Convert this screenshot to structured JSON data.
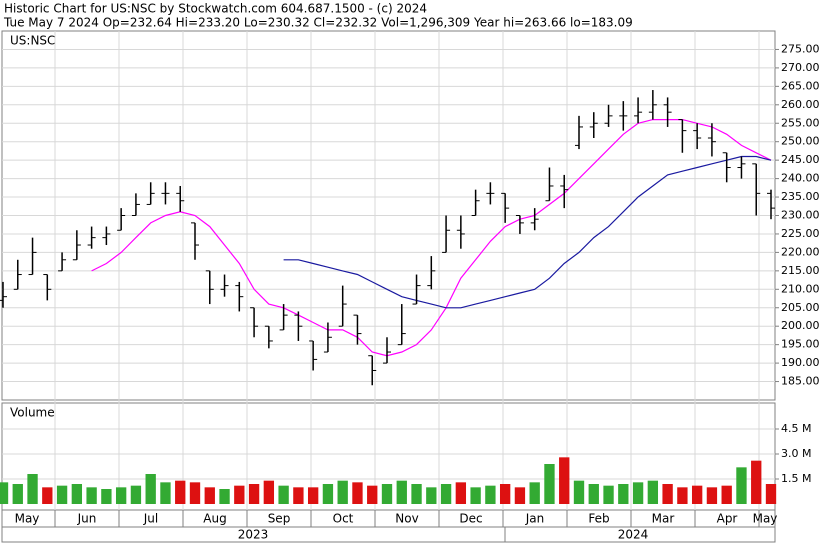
{
  "chart_data": {
    "type": "ohlc",
    "title": "Historic Chart for US:NSC by Stockwatch.com 604.687.1500 - (c) 2024",
    "subtitle": "Tue May  7 2024  Op=232.64  Hi=233.20  Lo=230.32  Cl=232.32  Vol=1,296,309  Year hi=263.66  lo=183.09",
    "symbol": "US:NSC",
    "volume_label": "Volume",
    "months": [
      "May",
      "Jun",
      "Jul",
      "Aug",
      "Sep",
      "Oct",
      "Nov",
      "Dec",
      "Jan",
      "Feb",
      "Mar",
      "Apr",
      "May"
    ],
    "years": [
      "2023",
      "2024"
    ],
    "ylim": [
      180,
      280
    ],
    "yticks": [
      {
        "value": 185,
        "label": "185.00"
      },
      {
        "value": 190,
        "label": "190.00"
      },
      {
        "value": 195,
        "label": "195.00"
      },
      {
        "value": 200,
        "label": "200.00"
      },
      {
        "value": 205,
        "label": "205.00"
      },
      {
        "value": 210,
        "label": "210.00"
      },
      {
        "value": 215,
        "label": "215.00"
      },
      {
        "value": 220,
        "label": "220.00"
      },
      {
        "value": 225,
        "label": "225.00"
      },
      {
        "value": 230,
        "label": "230.00"
      },
      {
        "value": 235,
        "label": "235.00"
      },
      {
        "value": 240,
        "label": "240.00"
      },
      {
        "value": 245,
        "label": "245.00"
      },
      {
        "value": 250,
        "label": "250.00"
      },
      {
        "value": 255,
        "label": "255.00"
      },
      {
        "value": 260,
        "label": "260.00"
      },
      {
        "value": 265,
        "label": "265.00"
      },
      {
        "value": 270,
        "label": "270.00"
      },
      {
        "value": 275,
        "label": "275.00"
      }
    ],
    "grid": true,
    "bar_color": "#000000",
    "opens": [
      207,
      210,
      214,
      214,
      215,
      218,
      222,
      224,
      226,
      230,
      233,
      236,
      236,
      228,
      215,
      210,
      211,
      205,
      200,
      199,
      203,
      196,
      193,
      200,
      203,
      192,
      190,
      195,
      206,
      211,
      220,
      226,
      230,
      236,
      236,
      230,
      228,
      234,
      238,
      249,
      254,
      255,
      257,
      257,
      258,
      260,
      256,
      253,
      251,
      247,
      243,
      244,
      236
    ],
    "highs": [
      212,
      218,
      224,
      214,
      220,
      226,
      227,
      227,
      232,
      236,
      239,
      239,
      238,
      228,
      215,
      214,
      212,
      205,
      200,
      206,
      204,
      196,
      201,
      211,
      203,
      192,
      197,
      206,
      214,
      219,
      230,
      230,
      237,
      239,
      236,
      230,
      232,
      243,
      241,
      257,
      258,
      260,
      261,
      262,
      264,
      262,
      256,
      255,
      255,
      247,
      246,
      244,
      237
    ],
    "lows": [
      205,
      210,
      214,
      207,
      215,
      218,
      221,
      222,
      226,
      230,
      233,
      233,
      231,
      218,
      206,
      208,
      204,
      197,
      194,
      199,
      196,
      188,
      193,
      200,
      195,
      184,
      190,
      195,
      206,
      210,
      220,
      221,
      230,
      233,
      228,
      225,
      226,
      234,
      232,
      248,
      251,
      254,
      253,
      255,
      256,
      254,
      247,
      248,
      246,
      239,
      240,
      230,
      229
    ],
    "closes": [
      208,
      214,
      220,
      210,
      218,
      222,
      224,
      225,
      230,
      233,
      236,
      236,
      234,
      222,
      210,
      211,
      208,
      200,
      196,
      203,
      200,
      191,
      197,
      206,
      198,
      188,
      193,
      198,
      211,
      215,
      226,
      225,
      234,
      236,
      232,
      228,
      229,
      238,
      237,
      254,
      255,
      257,
      257,
      258,
      260,
      258,
      253,
      251,
      250,
      243,
      244,
      236,
      232
    ],
    "series": [
      {
        "color": "#ff00ff",
        "values": [
          null,
          null,
          null,
          null,
          null,
          null,
          215,
          217,
          220,
          224,
          228,
          230,
          231,
          230,
          227,
          222,
          217,
          210,
          206,
          205,
          203,
          201,
          199,
          199,
          197,
          193,
          192,
          193,
          195,
          199,
          205,
          213,
          218,
          223,
          227,
          229,
          230,
          233,
          236,
          240,
          244,
          248,
          252,
          255,
          256,
          256,
          256,
          255,
          254,
          252,
          249,
          247,
          245
        ]
      },
      {
        "color": "#1a1aa0",
        "values": [
          null,
          null,
          null,
          null,
          null,
          null,
          null,
          null,
          null,
          null,
          null,
          null,
          null,
          null,
          null,
          null,
          null,
          null,
          null,
          218,
          218,
          217,
          216,
          215,
          214,
          212,
          210,
          208,
          207,
          206,
          205,
          205,
          206,
          207,
          208,
          209,
          210,
          213,
          217,
          220,
          224,
          227,
          231,
          235,
          238,
          241,
          242,
          243,
          244,
          245,
          246,
          246,
          245
        ]
      }
    ],
    "volume": {
      "ylim": [
        0,
        6.06
      ],
      "yticks": [
        {
          "value": 1.5,
          "label": "1.5 M"
        },
        {
          "value": 3.0,
          "label": "3.0 M"
        },
        {
          "value": 4.5,
          "label": "4.5 M"
        }
      ],
      "up_color": "#33aa33",
      "down_color": "#dd1111",
      "values": [
        1.3,
        1.2,
        1.8,
        1.0,
        1.1,
        1.2,
        1.0,
        0.9,
        1.0,
        1.1,
        1.8,
        1.3,
        1.4,
        1.3,
        1.0,
        0.9,
        1.1,
        1.2,
        1.4,
        1.1,
        1.0,
        1.0,
        1.2,
        1.4,
        1.3,
        1.1,
        1.2,
        1.4,
        1.2,
        1.0,
        1.2,
        1.3,
        1.0,
        1.1,
        1.2,
        1.0,
        1.3,
        2.4,
        2.8,
        1.4,
        1.2,
        1.1,
        1.2,
        1.3,
        1.4,
        1.2,
        1.0,
        1.1,
        1.0,
        1.1,
        2.2,
        2.6,
        1.2
      ]
    }
  }
}
